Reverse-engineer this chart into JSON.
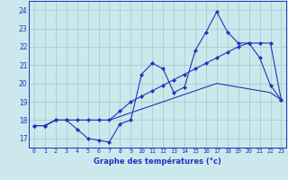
{
  "xlabel": "Graphe des températures (°c)",
  "x_ticks": [
    0,
    1,
    2,
    3,
    4,
    5,
    6,
    7,
    8,
    9,
    10,
    11,
    12,
    13,
    14,
    15,
    16,
    17,
    18,
    19,
    20,
    21,
    22,
    23
  ],
  "y_ticks": [
    17,
    18,
    19,
    20,
    21,
    22,
    23,
    24
  ],
  "ylim": [
    16.5,
    24.5
  ],
  "xlim": [
    -0.5,
    23.5
  ],
  "bg_color": "#cce8ec",
  "grid_color": "#99cccc",
  "line_color": "#2233bb",
  "series1": [
    17.7,
    17.7,
    18.0,
    18.0,
    17.5,
    17.0,
    16.9,
    16.8,
    17.8,
    18.0,
    20.5,
    21.1,
    20.8,
    19.5,
    19.8,
    21.8,
    22.8,
    23.9,
    22.8,
    22.2,
    22.2,
    21.4,
    19.9,
    19.1
  ],
  "series2": [
    17.7,
    17.7,
    18.0,
    18.0,
    18.0,
    18.0,
    18.0,
    18.0,
    18.5,
    19.0,
    19.3,
    19.6,
    19.9,
    20.2,
    20.5,
    20.8,
    21.1,
    21.4,
    21.7,
    22.0,
    22.2,
    22.2,
    22.2,
    19.1
  ],
  "series3": [
    17.7,
    17.7,
    18.0,
    18.0,
    18.0,
    18.0,
    18.0,
    18.0,
    18.2,
    18.4,
    18.6,
    18.8,
    19.0,
    19.2,
    19.4,
    19.6,
    19.8,
    20.0,
    19.9,
    19.8,
    19.7,
    19.6,
    19.5,
    19.1
  ]
}
